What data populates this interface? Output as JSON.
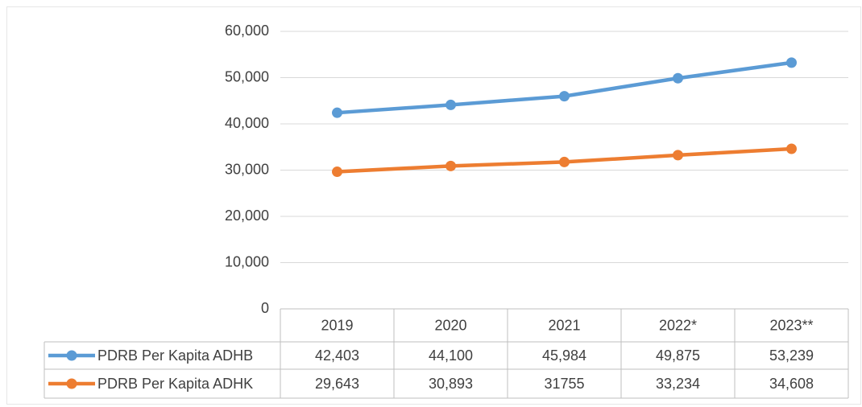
{
  "chart_data": {
    "type": "line",
    "categories": [
      "2019",
      "2020",
      "2021",
      "2022*",
      "2023**"
    ],
    "series": [
      {
        "name": "PDRB Per Kapita ADHB",
        "color": "#5b9bd5",
        "values": [
          42403,
          44100,
          45984,
          49875,
          53239
        ],
        "value_labels": [
          "42,403",
          "44,100",
          "45,984",
          "49,875",
          "53,239"
        ]
      },
      {
        "name": "PDRB Per Kapita ADHK",
        "color": "#ed7d31",
        "values": [
          29643,
          30893,
          31755,
          33234,
          34608
        ],
        "value_labels": [
          "29,643",
          "30,893",
          "31755",
          "33,234",
          "34,608"
        ]
      }
    ],
    "ylim": [
      0,
      60000
    ],
    "yticks": [
      0,
      {
        "value": 10000,
        "label": "10,000"
      },
      {
        "value": 20000,
        "label": "20,000"
      },
      {
        "value": 30000,
        "label": "30,000"
      },
      {
        "value": 40000,
        "label": "40,000"
      },
      {
        "value": 50000,
        "label": "50,000"
      },
      {
        "value": 60000,
        "label": "60,000"
      }
    ],
    "grid": true
  }
}
